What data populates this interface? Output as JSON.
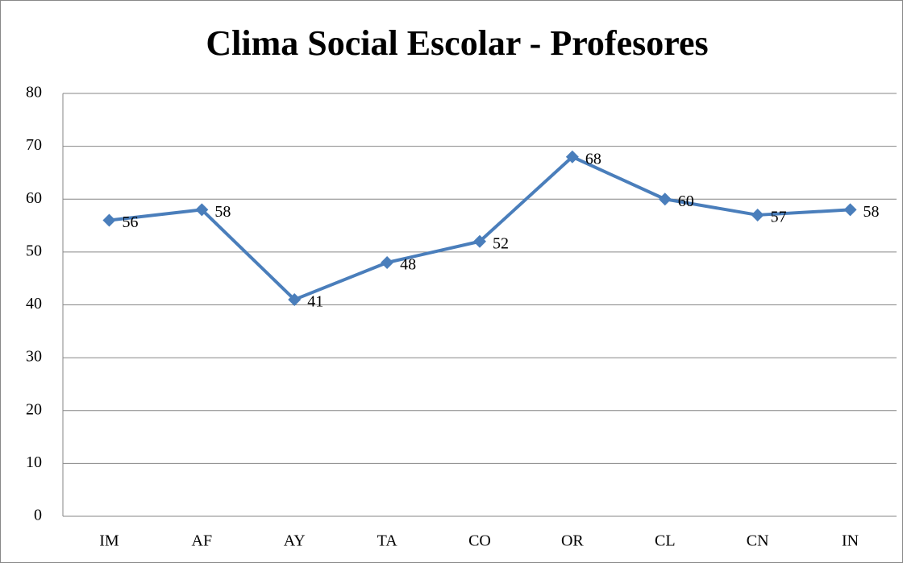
{
  "chart_data": {
    "type": "line",
    "title": "Clima Social Escolar - Profesores",
    "categories": [
      "IM",
      "AF",
      "AY",
      "TA",
      "CO",
      "OR",
      "CL",
      "CN",
      "IN"
    ],
    "series": [
      {
        "name": "Profesores",
        "color": "#4a7ebb",
        "values": [
          56,
          58,
          41,
          48,
          52,
          68,
          60,
          57,
          58
        ]
      }
    ],
    "ylim": [
      0,
      80
    ],
    "yticks": [
      0,
      10,
      20,
      30,
      40,
      50,
      60,
      70,
      80
    ],
    "grid": true,
    "data_labels": true,
    "legend": false
  }
}
